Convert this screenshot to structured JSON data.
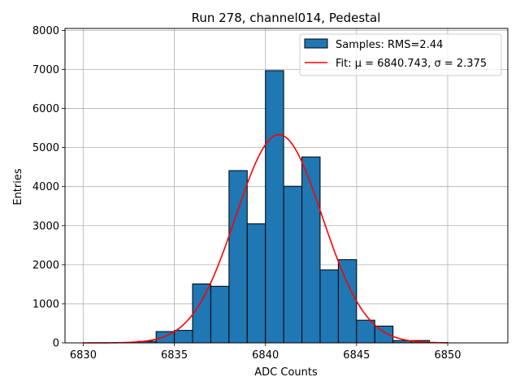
{
  "chart_data": {
    "type": "bar",
    "title": "Run 278, channel014, Pedestal",
    "xlabel": "ADC Counts",
    "ylabel": "Entries",
    "xlim": [
      6829,
      6853.3
    ],
    "ylim": [
      0,
      8050
    ],
    "xticks": [
      6830,
      6835,
      6840,
      6845,
      6850
    ],
    "yticks": [
      0,
      1000,
      2000,
      3000,
      4000,
      5000,
      6000,
      7000,
      8000
    ],
    "grid": true,
    "legend_position": "top-right",
    "colors": {
      "bar_fill": "#1f77b4",
      "bar_edge": "#000000",
      "fit_line": "#ff0000",
      "grid": "#b0b0b0"
    },
    "bin_width": 1,
    "bins": [
      {
        "left": 6830,
        "count": 0
      },
      {
        "left": 6831,
        "count": 0
      },
      {
        "left": 6832,
        "count": 5
      },
      {
        "left": 6833,
        "count": 40
      },
      {
        "left": 6834,
        "count": 290
      },
      {
        "left": 6835,
        "count": 320
      },
      {
        "left": 6836,
        "count": 1510
      },
      {
        "left": 6837,
        "count": 1450
      },
      {
        "left": 6838,
        "count": 4410
      },
      {
        "left": 6839,
        "count": 3050
      },
      {
        "left": 6840,
        "count": 6970
      },
      {
        "left": 6841,
        "count": 4010
      },
      {
        "left": 6842,
        "count": 4760
      },
      {
        "left": 6843,
        "count": 1870
      },
      {
        "left": 6844,
        "count": 2130
      },
      {
        "left": 6845,
        "count": 580
      },
      {
        "left": 6846,
        "count": 430
      },
      {
        "left": 6847,
        "count": 60
      },
      {
        "left": 6848,
        "count": 60
      },
      {
        "left": 6849,
        "count": 10
      },
      {
        "left": 6850,
        "count": 0
      },
      {
        "left": 6851,
        "count": 0
      }
    ],
    "fit": {
      "mu": 6840.743,
      "sigma": 2.375,
      "amplitude": 5330,
      "x_range": [
        6830,
        6850
      ]
    },
    "series": [
      {
        "name": "Samples: RMS=2.44",
        "kind": "histogram"
      },
      {
        "name_prefix": "Fit: ",
        "mu_label": "μ = 6840.743",
        "sep": ", ",
        "sigma_label": "σ = 2.375",
        "kind": "line"
      }
    ]
  }
}
